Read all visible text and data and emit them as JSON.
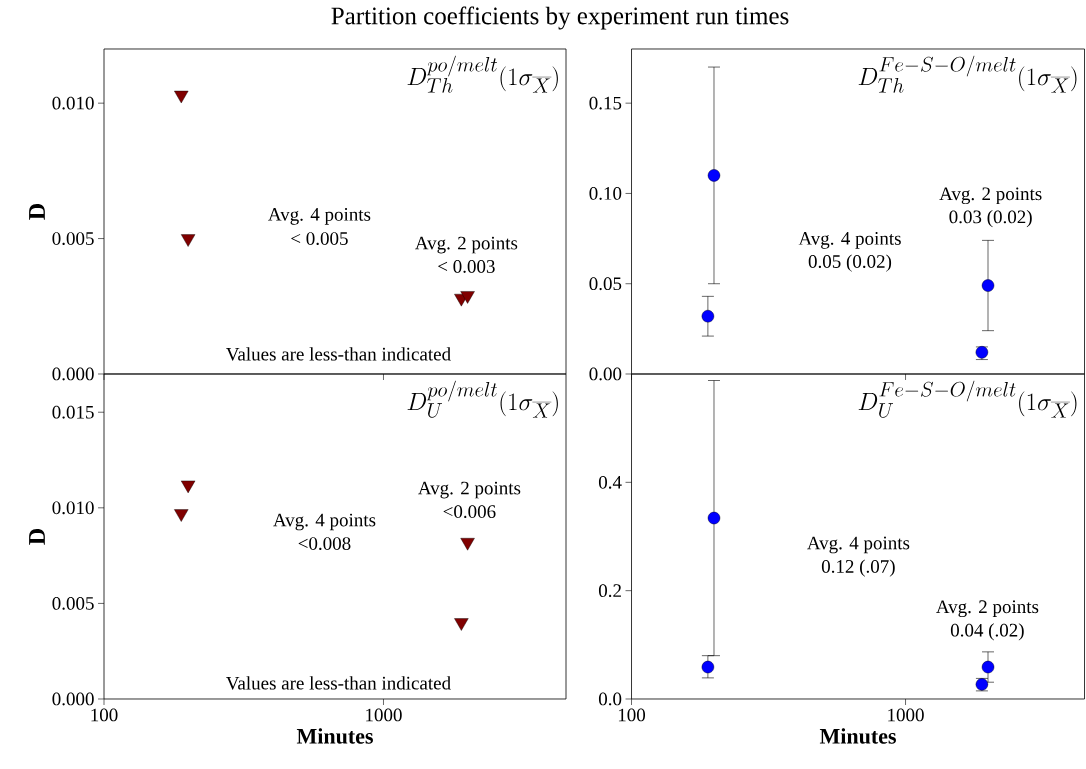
{
  "chart_data": [
    {
      "type": "scatter",
      "title": "Partition coefficients by experiment run times",
      "subtitle": "D_{Th}^{po/melt}(1\\sigma_{\\overline{X}})",
      "ylabel": "D",
      "log": "x",
      "marker": "triangle",
      "color": "#800000",
      "x": [
        189,
        200,
        1900,
        2000
      ],
      "values": [
        0.0103,
        0.005,
        0.0028,
        0.0029
      ],
      "xlim": [
        100,
        4500
      ],
      "xticks": [
        100,
        1000
      ],
      "ylim": [
        0,
        0.012
      ],
      "yticks": [
        {
          "value": 0,
          "label": "0.000"
        },
        {
          "value": 0.005,
          "label": "0.005"
        },
        {
          "value": 0.01,
          "label": "0.010"
        }
      ],
      "tick_labels": "y",
      "annotations": [
        "Avg. 4 points",
        "< 0.005",
        "Avg. 2 points",
        "< 0.003",
        "Values are less-than indicated"
      ]
    },
    {
      "type": "scatter",
      "subtitle": "D_{Th}^{Fe{-}S{-}O/melt}(1\\sigma_{\\overline{X}})",
      "log": "x",
      "marker": "circle",
      "color": "#0000ff",
      "x": [
        190,
        200,
        1900,
        2000
      ],
      "values": [
        0.032,
        0.11,
        0.012,
        0.049
      ],
      "errors": [
        [
          0.021,
          0.043
        ],
        [
          0.05,
          0.17
        ],
        [
          0.008,
          0.015
        ],
        [
          0.024,
          0.074
        ]
      ],
      "xlim": [
        100,
        4500
      ],
      "xticks": [
        100,
        1000
      ],
      "ylim": [
        0,
        0.18
      ],
      "yticks": [
        {
          "value": 0,
          "label": "0.00"
        },
        {
          "value": 0.05,
          "label": "0.05"
        },
        {
          "value": 0.1,
          "label": "0.10"
        },
        0.15
      ],
      "tick_labels": "y",
      "annotations": [
        "Avg. 4 points",
        "0.05 (0.02)",
        "Avg. 2 points",
        "0.03 (0.02)"
      ]
    },
    {
      "type": "scatter",
      "subtitle": "D_{U}^{po/melt}(1\\sigma_{\\overline{X}})",
      "xlabel": "Minutes",
      "ylabel": "D",
      "log": "x",
      "marker": "triangle",
      "color": "#800000",
      "x": [
        189,
        200,
        1900,
        2000
      ],
      "values": [
        0.0097,
        0.0112,
        0.004,
        0.0082
      ],
      "xlim": [
        100,
        4500
      ],
      "xticks": [
        100,
        1000
      ],
      "ylim": [
        0,
        0.017
      ],
      "yticks": [
        {
          "value": 0,
          "label": "0.000"
        },
        {
          "value": 0.005,
          "label": "0.005"
        },
        {
          "value": 0.01,
          "label": "0.010"
        },
        {
          "value": 0.015,
          "label": "0.015"
        }
      ],
      "annotations": [
        "Avg. 4 points",
        "<0.008",
        "Avg. 2 points",
        "<0.006",
        "Values are less-than indicated"
      ]
    },
    {
      "type": "scatter",
      "subtitle": "D_{U}^{Fe{-}S{-}O/melt}(1\\sigma_{\\overline{X}})",
      "xlabel": "Minutes",
      "log": "x",
      "marker": "circle",
      "color": "#0000ff",
      "x": [
        190,
        200,
        1900,
        2000
      ],
      "values": [
        0.059,
        0.334,
        0.027,
        0.059
      ],
      "errors": [
        [
          0.039,
          0.08
        ],
        [
          0.08,
          0.588
        ],
        [
          0.015,
          0.038
        ],
        [
          0.031,
          0.087
        ]
      ],
      "xlim": [
        100,
        4500
      ],
      "xticks": [
        100,
        1000
      ],
      "ylim": [
        0,
        0.6
      ],
      "yticks": [
        {
          "value": 0,
          "label": "0.0"
        },
        {
          "value": 0.2,
          "label": "0.2"
        },
        {
          "value": 0.4,
          "label": "0.4"
        }
      ],
      "annotations": [
        "Avg. 4 points",
        "0.12 (.07)",
        "Avg. 2 points",
        "0.04 (.02)"
      ]
    }
  ]
}
